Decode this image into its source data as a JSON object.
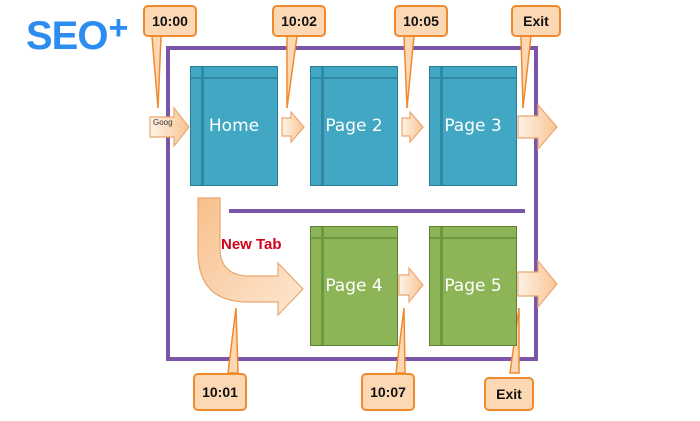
{
  "logo": {
    "text": "SEO",
    "plus": "+"
  },
  "pages": [
    {
      "label": "Home",
      "color": "blue"
    },
    {
      "label": "Page 2",
      "color": "blue"
    },
    {
      "label": "Page 3",
      "color": "blue"
    },
    {
      "label": "Page 4",
      "color": "green"
    },
    {
      "label": "Page 5",
      "color": "green"
    }
  ],
  "timestamps": {
    "t1000": "10:00",
    "t1002": "10:02",
    "t1005": "10:05",
    "exit_top": "Exit",
    "t1001": "10:01",
    "t1007": "10:07",
    "exit_bottom": "Exit"
  },
  "source_label": "Goog",
  "new_tab_label": "New Tab",
  "colors": {
    "frame": "#7a55a8",
    "page_blue": "#41a7c3",
    "page_green": "#8db456",
    "callout_fill": "#fcd9b4",
    "callout_border": "#f08a2e",
    "new_tab": "#d0021b",
    "logo": "#2d8cf0"
  }
}
